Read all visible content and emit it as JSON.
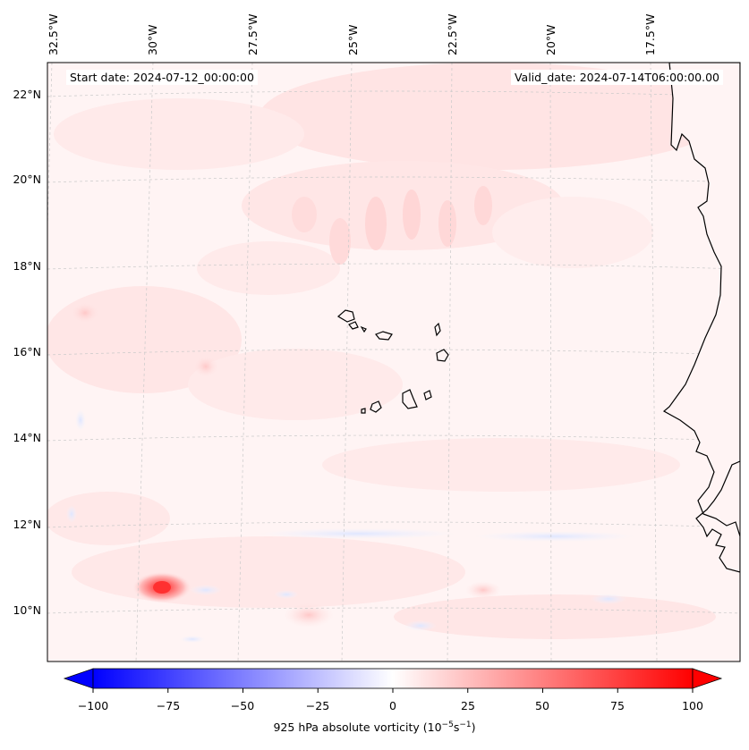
{
  "header": {
    "start_date": "Start date: 2024-07-12_00:00:00",
    "valid_date": "Valid_date: 2024-07-14T06:00:00.00"
  },
  "map": {
    "longitude_labels": [
      "32.5°W",
      "30°W",
      "27.5°W",
      "25°W",
      "22.5°W",
      "20°W",
      "17.5°W"
    ],
    "latitude_labels": [
      "22°N",
      "20°N",
      "18°N",
      "16°N",
      "14°N",
      "12°N",
      "10°N"
    ],
    "field": "925 hPa absolute vorticity",
    "features": [
      "coastline-west-africa",
      "cape-verde-islands"
    ],
    "colormap": "bwr",
    "max_vorticity_spot": {
      "lat": 10.6,
      "lon": -30.3,
      "value": 60
    }
  },
  "colorbar": {
    "ticks": [
      "−100",
      "−75",
      "−50",
      "−25",
      "0",
      "25",
      "50",
      "75",
      "100"
    ],
    "label_prefix": "925 hPa absolute vorticity (10",
    "label_exp1": "−5",
    "label_mid": "s",
    "label_exp2": "−1",
    "label_suffix": ")",
    "min": -100,
    "max": 100,
    "levels": 41,
    "extend": "both",
    "colors": {
      "low": "#0000ff",
      "mid": "#ffffff",
      "high": "#ff0000"
    }
  }
}
